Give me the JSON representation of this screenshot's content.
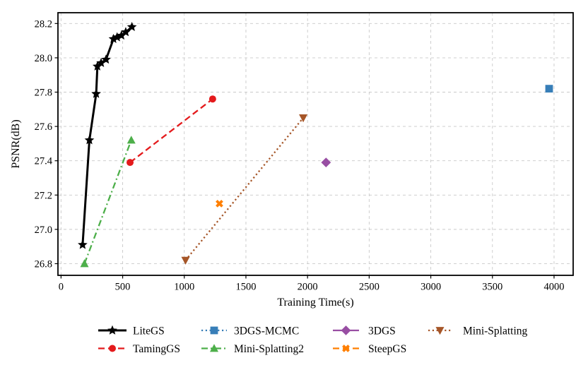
{
  "chart_data": {
    "type": "line",
    "title": "",
    "xlabel": "Training Time(s)",
    "ylabel": "PSNR(dB)",
    "xlim": [
      -25,
      4155
    ],
    "ylim": [
      26.732,
      28.263
    ],
    "xticks": [
      0,
      500,
      1000,
      1500,
      2000,
      2500,
      3000,
      3500,
      4000
    ],
    "yticks": [
      26.8,
      27.0,
      27.2,
      27.4,
      27.6,
      27.8,
      28.0,
      28.2
    ],
    "grid": true,
    "grid_style": "dashed",
    "legend_position": "bottom",
    "legend_rows": [
      [
        "LiteGS",
        "3DGS-MCMC",
        "3DGS",
        "Mini-Splatting"
      ],
      [
        "TamingGS",
        "Mini-Splatting2",
        "SteepGS"
      ]
    ],
    "series": [
      {
        "name": "LiteGS",
        "color": "#000000",
        "line_style": "solid",
        "marker": "star",
        "x": [
          175,
          230,
          285,
          295,
          325,
          365,
          425,
          455,
          490,
          525,
          575
        ],
        "y": [
          26.91,
          27.52,
          27.79,
          27.95,
          27.97,
          27.99,
          28.11,
          28.12,
          28.13,
          28.15,
          28.18
        ]
      },
      {
        "name": "TamingGS",
        "color": "#e41a1c",
        "line_style": "dashed",
        "marker": "circle",
        "x": [
          560,
          1230
        ],
        "y": [
          27.39,
          27.76
        ]
      },
      {
        "name": "3DGS-MCMC",
        "color": "#377eb8",
        "line_style": "dotted",
        "marker": "square",
        "x": [
          3960
        ],
        "y": [
          27.82
        ]
      },
      {
        "name": "Mini-Splatting2",
        "color": "#4daf4a",
        "line_style": "dashdot",
        "marker": "triangle-up",
        "x": [
          190,
          570
        ],
        "y": [
          26.8,
          27.52
        ]
      },
      {
        "name": "3DGS",
        "color": "#984ea3",
        "line_style": "solid",
        "marker": "diamond",
        "x": [
          2150
        ],
        "y": [
          27.39
        ]
      },
      {
        "name": "SteepGS",
        "color": "#ff7f00",
        "line_style": "dashed",
        "marker": "x-cross",
        "x": [
          1285
        ],
        "y": [
          27.15
        ]
      },
      {
        "name": "Mini-Splatting",
        "color": "#a65628",
        "line_style": "dotted",
        "marker": "triangle-down",
        "x": [
          1010,
          1965
        ],
        "y": [
          26.82,
          27.65
        ]
      }
    ]
  }
}
